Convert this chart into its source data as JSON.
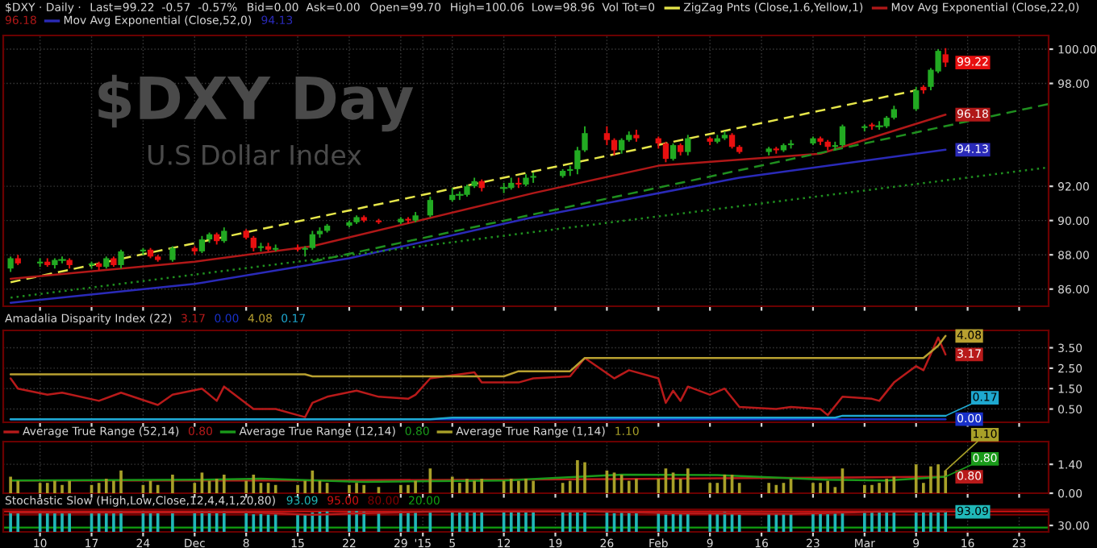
{
  "chart_data": [
    {
      "type": "candlestick",
      "title": "$DXY Day",
      "subtitle": "U.S Dollar Index",
      "x": [
        "2014-11-06",
        "2014-11-07",
        "2014-11-10",
        "2014-11-11",
        "2014-11-12",
        "2014-11-13",
        "2014-11-14",
        "2014-11-17",
        "2014-11-18",
        "2014-11-19",
        "2014-11-20",
        "2014-11-21",
        "2014-11-24",
        "2014-11-25",
        "2014-11-26",
        "2014-11-28",
        "2014-12-01",
        "2014-12-02",
        "2014-12-03",
        "2014-12-04",
        "2014-12-05",
        "2014-12-08",
        "2014-12-09",
        "2014-12-10",
        "2014-12-11",
        "2014-12-12",
        "2014-12-15",
        "2014-12-16",
        "2014-12-17",
        "2014-12-18",
        "2014-12-19",
        "2014-12-22",
        "2014-12-23",
        "2014-12-24",
        "2014-12-26",
        "2014-12-29",
        "2014-12-30",
        "2014-12-31",
        "2015-01-02",
        "2015-01-05",
        "2015-01-06",
        "2015-01-07",
        "2015-01-08",
        "2015-01-09",
        "2015-01-12",
        "2015-01-13",
        "2015-01-14",
        "2015-01-15",
        "2015-01-16",
        "2015-01-20",
        "2015-01-21",
        "2015-01-22",
        "2015-01-23",
        "2015-01-26",
        "2015-01-27",
        "2015-01-28",
        "2015-01-29",
        "2015-01-30",
        "2015-02-02",
        "2015-02-03",
        "2015-02-04",
        "2015-02-05",
        "2015-02-06",
        "2015-02-09",
        "2015-02-10",
        "2015-02-11",
        "2015-02-12",
        "2015-02-13",
        "2015-02-17",
        "2015-02-18",
        "2015-02-19",
        "2015-02-20",
        "2015-02-23",
        "2015-02-24",
        "2015-02-25",
        "2015-02-26",
        "2015-02-27",
        "2015-03-02",
        "2015-03-03",
        "2015-03-04",
        "2015-03-05",
        "2015-03-06",
        "2015-03-09",
        "2015-03-10",
        "2015-03-11",
        "2015-03-12",
        "2015-03-13"
      ],
      "ohlc": [
        [
          87.2,
          87.9,
          87.0,
          87.8
        ],
        [
          87.8,
          88.0,
          87.4,
          87.5
        ],
        [
          87.5,
          87.8,
          87.3,
          87.6
        ],
        [
          87.6,
          87.8,
          87.3,
          87.4
        ],
        [
          87.4,
          87.8,
          87.2,
          87.7
        ],
        [
          87.7,
          87.9,
          87.5,
          87.7
        ],
        [
          87.7,
          87.8,
          87.2,
          87.4
        ],
        [
          87.4,
          87.6,
          87.2,
          87.5
        ],
        [
          87.5,
          87.6,
          87.1,
          87.3
        ],
        [
          87.3,
          87.9,
          87.2,
          87.8
        ],
        [
          87.8,
          87.9,
          87.3,
          87.4
        ],
        [
          87.4,
          88.3,
          87.2,
          88.2
        ],
        [
          88.2,
          88.4,
          88.0,
          88.3
        ],
        [
          88.3,
          88.4,
          87.8,
          87.9
        ],
        [
          87.9,
          88.0,
          87.6,
          87.7
        ],
        [
          87.7,
          88.5,
          87.6,
          88.4
        ],
        [
          88.4,
          88.5,
          88.0,
          88.2
        ],
        [
          88.2,
          89.1,
          88.1,
          88.9
        ],
        [
          88.9,
          89.3,
          88.7,
          89.2
        ],
        [
          89.2,
          89.3,
          88.6,
          88.8
        ],
        [
          88.8,
          89.6,
          88.7,
          89.4
        ],
        [
          89.4,
          89.5,
          88.9,
          89.0
        ],
        [
          89.0,
          89.1,
          88.2,
          88.4
        ],
        [
          88.4,
          88.7,
          88.2,
          88.5
        ],
        [
          88.5,
          88.7,
          88.2,
          88.3
        ],
        [
          88.3,
          88.6,
          88.2,
          88.4
        ],
        [
          88.4,
          88.6,
          88.2,
          88.3
        ],
        [
          88.3,
          88.5,
          87.9,
          88.4
        ],
        [
          88.4,
          89.4,
          88.3,
          89.2
        ],
        [
          89.2,
          89.6,
          89.0,
          89.4
        ],
        [
          89.4,
          89.8,
          89.3,
          89.7
        ],
        [
          89.7,
          90.0,
          89.6,
          89.9
        ],
        [
          89.9,
          90.3,
          89.8,
          90.2
        ],
        [
          90.2,
          90.3,
          89.9,
          90.0
        ],
        [
          90.0,
          90.1,
          89.8,
          89.9
        ],
        [
          89.9,
          90.2,
          89.8,
          90.1
        ],
        [
          90.1,
          90.2,
          89.8,
          90.0
        ],
        [
          90.0,
          90.5,
          89.9,
          90.3
        ],
        [
          90.3,
          91.4,
          90.2,
          91.2
        ],
        [
          91.2,
          91.9,
          91.1,
          91.5
        ],
        [
          91.5,
          91.7,
          91.2,
          91.5
        ],
        [
          91.5,
          92.1,
          91.4,
          92.0
        ],
        [
          92.0,
          92.5,
          91.9,
          92.3
        ],
        [
          92.3,
          92.4,
          91.7,
          91.9
        ],
        [
          91.9,
          92.2,
          91.6,
          91.9
        ],
        [
          91.9,
          92.5,
          91.8,
          92.2
        ],
        [
          92.2,
          92.5,
          91.9,
          92.1
        ],
        [
          92.1,
          92.7,
          92.0,
          92.5
        ],
        [
          92.5,
          92.8,
          92.2,
          92.6
        ],
        [
          92.6,
          93.0,
          92.5,
          92.9
        ],
        [
          92.9,
          93.2,
          92.6,
          93.0
        ],
        [
          93.0,
          94.3,
          92.7,
          94.1
        ],
        [
          94.1,
          95.5,
          94.0,
          95.1
        ],
        [
          95.1,
          95.5,
          94.4,
          94.7
        ],
        [
          94.7,
          94.8,
          93.8,
          94.1
        ],
        [
          94.1,
          94.8,
          93.9,
          94.7
        ],
        [
          94.7,
          95.2,
          94.6,
          95.0
        ],
        [
          95.0,
          95.3,
          94.6,
          94.8
        ],
        [
          94.8,
          94.9,
          94.2,
          94.5
        ],
        [
          94.5,
          94.6,
          93.4,
          93.6
        ],
        [
          93.6,
          94.5,
          93.5,
          94.4
        ],
        [
          94.4,
          94.5,
          93.8,
          94.0
        ],
        [
          94.0,
          95.0,
          93.8,
          94.8
        ],
        [
          94.8,
          94.9,
          94.4,
          94.6
        ],
        [
          94.6,
          95.0,
          94.5,
          94.8
        ],
        [
          94.8,
          95.2,
          94.7,
          95.0
        ],
        [
          95.0,
          95.1,
          94.2,
          94.3
        ],
        [
          94.3,
          94.4,
          93.9,
          94.0
        ],
        [
          94.0,
          94.3,
          93.8,
          94.2
        ],
        [
          94.2,
          94.3,
          93.9,
          94.1
        ],
        [
          94.1,
          94.5,
          94.0,
          94.4
        ],
        [
          94.4,
          94.7,
          94.2,
          94.5
        ],
        [
          94.5,
          94.9,
          94.4,
          94.8
        ],
        [
          94.8,
          94.9,
          94.4,
          94.6
        ],
        [
          94.6,
          94.7,
          94.1,
          94.3
        ],
        [
          94.3,
          94.6,
          94.1,
          94.4
        ],
        [
          94.4,
          95.6,
          94.3,
          95.5
        ],
        [
          95.4,
          95.6,
          95.2,
          95.5
        ],
        [
          95.6,
          95.7,
          95.3,
          95.5
        ],
        [
          95.5,
          95.8,
          95.3,
          95.5
        ],
        [
          95.5,
          96.1,
          95.4,
          96.0
        ],
        [
          96.0,
          96.7,
          95.9,
          96.5
        ],
        [
          96.5,
          97.8,
          96.4,
          97.6
        ],
        [
          97.8,
          97.9,
          97.4,
          97.6
        ],
        [
          97.8,
          98.9,
          97.6,
          98.8
        ],
        [
          98.7,
          100.0,
          98.6,
          99.9
        ],
        [
          99.7,
          100.06,
          98.96,
          99.22
        ]
      ],
      "colors": [
        "#22aa22",
        "#e81010",
        "#22aa22",
        "#e81010",
        "#22aa22",
        "#22aa22",
        "#e81010",
        "#22aa22",
        "#e81010",
        "#22aa22",
        "#e81010",
        "#22aa22",
        "#22aa22",
        "#e81010",
        "#e81010",
        "#22aa22",
        "#e81010",
        "#22aa22",
        "#22aa22",
        "#e81010",
        "#22aa22",
        "#e81010",
        "#e81010",
        "#22aa22",
        "#e81010",
        "#22aa22",
        "#e81010",
        "#22aa22",
        "#22aa22",
        "#22aa22",
        "#22aa22",
        "#22aa22",
        "#22aa22",
        "#e81010",
        "#e81010",
        "#22aa22",
        "#e81010",
        "#22aa22",
        "#22aa22",
        "#22aa22",
        "#22aa22",
        "#22aa22",
        "#22aa22",
        "#e81010",
        "#22aa22",
        "#22aa22",
        "#e81010",
        "#22aa22",
        "#22aa22",
        "#22aa22",
        "#22aa22",
        "#22aa22",
        "#22aa22",
        "#e81010",
        "#e81010",
        "#22aa22",
        "#22aa22",
        "#e81010",
        "#e81010",
        "#e81010",
        "#22aa22",
        "#e81010",
        "#22aa22",
        "#e81010",
        "#22aa22",
        "#22aa22",
        "#e81010",
        "#e81010",
        "#22aa22",
        "#e81010",
        "#22aa22",
        "#22aa22",
        "#22aa22",
        "#e81010",
        "#e81010",
        "#22aa22",
        "#22aa22",
        "#22aa22",
        "#e81010",
        "#22aa22",
        "#22aa22",
        "#22aa22",
        "#22aa22",
        "#e81010",
        "#22aa22",
        "#22aa22",
        "#e81010"
      ],
      "series": [
        {
          "name": "ZigZag Pnts (Close,1.6,Yellow,1)",
          "type": "line",
          "color": "#e6e64a",
          "line_style": "dashed",
          "x": [
            "2014-11-06",
            "2015-03-09"
          ],
          "values": [
            86.4,
            97.6
          ]
        },
        {
          "name": "Mov Avg Exponential (Close,22,0)",
          "type": "line",
          "color": "#b01818",
          "line_style": "solid",
          "x": [
            "2014-11-06",
            "2014-12-01",
            "2014-12-17",
            "2015-01-16",
            "2015-02-02",
            "2015-02-24",
            "2015-03-13"
          ],
          "values": [
            86.6,
            87.6,
            88.5,
            91.6,
            93.2,
            93.9,
            96.18
          ]
        },
        {
          "name": "Mov Avg Exponential (Close,52,0)",
          "type": "line",
          "color": "#2a2ab8",
          "line_style": "solid",
          "x": [
            "2014-11-06",
            "2014-12-01",
            "2014-12-22",
            "2015-01-16",
            "2015-02-13",
            "2015-03-13"
          ],
          "values": [
            85.2,
            86.3,
            87.8,
            90.2,
            92.5,
            94.13
          ]
        },
        {
          "type": "line",
          "color": "#1f8f1f",
          "line_style": "dashed",
          "x": [
            "2014-12-17",
            "2015-03-27"
          ],
          "values": [
            87.6,
            96.8
          ]
        },
        {
          "type": "line",
          "color": "#1f8f1f",
          "line_style": "dotted",
          "x": [
            "2014-11-06",
            "2015-03-27"
          ],
          "values": [
            85.5,
            93.1
          ]
        }
      ],
      "xlim": [
        "2014-11-05",
        "2015-03-27"
      ],
      "ylim": [
        85.0,
        100.8
      ],
      "yticks": [
        {
          "value": 86,
          "label": "86.00"
        },
        {
          "value": 88,
          "label": "88.00"
        },
        {
          "value": 90,
          "label": "90.00"
        },
        {
          "value": 92,
          "label": "92.00"
        },
        {
          "value": 98,
          "label": "98.00"
        },
        {
          "value": 100,
          "label": "100.00"
        }
      ],
      "xticks": [
        {
          "value": "2014-11-10",
          "label": null
        },
        {
          "value": "2014-11-17",
          "label": null
        },
        {
          "value": "2014-11-24",
          "label": null
        },
        {
          "value": "2014-12-01",
          "label": null
        },
        {
          "value": "2014-12-08",
          "label": null
        },
        {
          "value": "2014-12-15",
          "label": null
        },
        {
          "value": "2014-12-22",
          "label": null
        },
        {
          "value": "2014-12-29",
          "label": null
        },
        {
          "value": "2015-01-01",
          "label": null
        },
        {
          "value": "2015-01-05",
          "label": null
        },
        {
          "value": "2015-01-12",
          "label": null
        },
        {
          "value": "2015-01-19",
          "label": null
        },
        {
          "value": "2015-01-26",
          "label": null
        },
        {
          "value": "2015-02-02",
          "label": null
        },
        {
          "value": "2015-02-09",
          "label": null
        },
        {
          "value": "2015-02-16",
          "label": null
        },
        {
          "value": "2015-02-23",
          "label": null
        },
        {
          "value": "2015-03-02",
          "label": null
        },
        {
          "value": "2015-03-09",
          "label": null
        },
        {
          "value": "2015-03-16",
          "label": null
        },
        {
          "value": "2015-03-23",
          "label": null
        }
      ],
      "tick_labels": "y",
      "grid": true,
      "legend": "top left",
      "annotations": [
        "$DXY · Daily ·",
        "Last=99.22  -0.57  -0.57%",
        "Bid=0.00  Ask=0.00",
        "Open=99.70",
        "High=100.06  Low=98.96  Vol Tot=0",
        {
          "text": "99.22",
          "x": "2015-03-13",
          "y": 99.22
        },
        {
          "text": "96.18",
          "x": "2015-03-13",
          "y": 96.18
        },
        {
          "text": "94.13",
          "x": "2015-03-13",
          "y": 94.13
        }
      ]
    },
    {
      "type": "line",
      "title": "Amadalia Disparity Index (22)",
      "series": [
        {
          "type": "line",
          "color": "#b81a1a",
          "line_style": "solid",
          "x": [
            "2014-11-06",
            "2014-11-07",
            "2014-11-11",
            "2014-11-13",
            "2014-11-18",
            "2014-11-21",
            "2014-11-26",
            "2014-11-28",
            "2014-12-02",
            "2014-12-04",
            "2014-12-05",
            "2014-12-09",
            "2014-12-12",
            "2014-12-16",
            "2014-12-17",
            "2014-12-19",
            "2014-12-23",
            "2014-12-26",
            "2014-12-30",
            "2014-12-31",
            "2015-01-02",
            "2015-01-08",
            "2015-01-09",
            "2015-01-14",
            "2015-01-16",
            "2015-01-21",
            "2015-01-23",
            "2015-01-27",
            "2015-01-29",
            "2015-02-02",
            "2015-02-03",
            "2015-02-04",
            "2015-02-05",
            "2015-02-06",
            "2015-02-09",
            "2015-02-11",
            "2015-02-13",
            "2015-02-18",
            "2015-02-20",
            "2015-02-24",
            "2015-02-25",
            "2015-02-27",
            "2015-03-03",
            "2015-03-04",
            "2015-03-06",
            "2015-03-09",
            "2015-03-10",
            "2015-03-12",
            "2015-03-13"
          ],
          "values": [
            2.0,
            1.5,
            1.2,
            1.3,
            0.9,
            1.3,
            0.7,
            1.2,
            1.5,
            0.9,
            1.6,
            0.5,
            0.5,
            0.1,
            0.8,
            1.1,
            1.4,
            1.1,
            1.0,
            1.2,
            2.0,
            2.3,
            1.8,
            1.8,
            2.0,
            2.1,
            3.0,
            2.0,
            2.4,
            2.0,
            0.8,
            1.4,
            0.9,
            1.6,
            1.2,
            1.5,
            0.6,
            0.5,
            0.6,
            0.5,
            0.2,
            1.1,
            1.0,
            0.9,
            1.8,
            2.6,
            2.4,
            4.0,
            3.17
          ]
        },
        {
          "type": "line",
          "color": "#1830c8",
          "line_style": "solid",
          "x": [
            "2014-11-06",
            "2015-03-13"
          ],
          "values": [
            0.0,
            0.0
          ]
        },
        {
          "type": "line",
          "color": "#b8a030",
          "line_style": "solid",
          "x": [
            "2014-11-06",
            "2014-12-16",
            "2014-12-17",
            "2015-01-12",
            "2015-01-14",
            "2015-01-21",
            "2015-01-23",
            "2015-03-10",
            "2015-03-12",
            "2015-03-13"
          ],
          "values": [
            2.2,
            2.2,
            2.1,
            2.1,
            2.35,
            2.35,
            3.0,
            3.0,
            3.6,
            4.08
          ]
        },
        {
          "type": "line",
          "color": "#1ea8d0",
          "line_style": "solid",
          "x": [
            "2014-11-06",
            "2015-01-02",
            "2015-01-05",
            "2015-02-26",
            "2015-02-27",
            "2015-03-13"
          ],
          "values": [
            0.0,
            0.0,
            0.08,
            0.08,
            0.17,
            0.17
          ]
        }
      ],
      "xlim": [
        "2014-11-05",
        "2015-03-27"
      ],
      "ylim": [
        -0.15,
        4.35
      ],
      "yticks": [
        {
          "value": 0.5,
          "label": "0.50"
        },
        {
          "value": 1.5,
          "label": "1.50"
        },
        {
          "value": 2.5,
          "label": "2.50"
        },
        {
          "value": 3.5,
          "label": "3.50"
        }
      ],
      "xticks": [
        {
          "value": "2014-11-10",
          "label": null
        },
        {
          "value": "2014-11-17",
          "label": null
        },
        {
          "value": "2014-11-24",
          "label": null
        },
        {
          "value": "2014-12-01",
          "label": null
        },
        {
          "value": "2014-12-08",
          "label": null
        },
        {
          "value": "2014-12-15",
          "label": null
        },
        {
          "value": "2014-12-22",
          "label": null
        },
        {
          "value": "2014-12-29",
          "label": null
        },
        {
          "value": "2015-01-01",
          "label": null
        },
        {
          "value": "2015-01-05",
          "label": null
        },
        {
          "value": "2015-01-12",
          "label": null
        },
        {
          "value": "2015-01-19",
          "label": null
        },
        {
          "value": "2015-01-26",
          "label": null
        },
        {
          "value": "2015-02-02",
          "label": null
        },
        {
          "value": "2015-02-09",
          "label": null
        },
        {
          "value": "2015-02-16",
          "label": null
        },
        {
          "value": "2015-02-23",
          "label": null
        },
        {
          "value": "2015-03-02",
          "label": null
        },
        {
          "value": "2015-03-09",
          "label": null
        },
        {
          "value": "2015-03-16",
          "label": null
        },
        {
          "value": "2015-03-23",
          "label": null
        }
      ],
      "tick_labels": "y",
      "grid": true,
      "annotations": [
        {
          "text": "3.17",
          "x": "2015-03-13",
          "y": 3.17
        },
        {
          "text": "0.00",
          "x": "2015-03-13",
          "y": 0.0
        },
        {
          "text": "4.08",
          "x": "2015-03-13",
          "y": 4.08
        },
        {
          "text": "0.17",
          "x": "2015-03-13",
          "y": 0.17
        }
      ]
    },
    {
      "type": "bar",
      "x": [
        "2014-11-06",
        "2014-11-07",
        "2014-11-10",
        "2014-11-11",
        "2014-11-12",
        "2014-11-13",
        "2014-11-14",
        "2014-11-17",
        "2014-11-18",
        "2014-11-19",
        "2014-11-20",
        "2014-11-21",
        "2014-11-24",
        "2014-11-25",
        "2014-11-26",
        "2014-11-28",
        "2014-12-01",
        "2014-12-02",
        "2014-12-03",
        "2014-12-04",
        "2014-12-05",
        "2014-12-08",
        "2014-12-09",
        "2014-12-10",
        "2014-12-11",
        "2014-12-12",
        "2014-12-15",
        "2014-12-16",
        "2014-12-17",
        "2014-12-18",
        "2014-12-19",
        "2014-12-22",
        "2014-12-23",
        "2014-12-24",
        "2014-12-26",
        "2014-12-29",
        "2014-12-30",
        "2014-12-31",
        "2015-01-02",
        "2015-01-05",
        "2015-01-06",
        "2015-01-07",
        "2015-01-08",
        "2015-01-09",
        "2015-01-12",
        "2015-01-13",
        "2015-01-14",
        "2015-01-15",
        "2015-01-16",
        "2015-01-20",
        "2015-01-21",
        "2015-01-22",
        "2015-01-23",
        "2015-01-26",
        "2015-01-27",
        "2015-01-28",
        "2015-01-29",
        "2015-01-30",
        "2015-02-02",
        "2015-02-03",
        "2015-02-04",
        "2015-02-05",
        "2015-02-06",
        "2015-02-09",
        "2015-02-10",
        "2015-02-11",
        "2015-02-12",
        "2015-02-13",
        "2015-02-17",
        "2015-02-18",
        "2015-02-19",
        "2015-02-20",
        "2015-02-23",
        "2015-02-24",
        "2015-02-25",
        "2015-02-26",
        "2015-02-27",
        "2015-03-02",
        "2015-03-03",
        "2015-03-04",
        "2015-03-05",
        "2015-03-06",
        "2015-03-09",
        "2015-03-10",
        "2015-03-11",
        "2015-03-12",
        "2015-03-13"
      ],
      "series": [
        {
          "name": "Average True Range (52,14)",
          "type": "line",
          "color": "#b81a1a",
          "line_style": "solid",
          "x": [
            "2014-11-06",
            "2014-12-15",
            "2015-01-15",
            "2015-02-10",
            "2015-03-13"
          ],
          "values": [
            0.62,
            0.62,
            0.66,
            0.72,
            0.8
          ]
        },
        {
          "name": "Average True Range (12,14)",
          "type": "line",
          "color": "#1a9a1a",
          "line_style": "solid",
          "x": [
            "2014-11-06",
            "2014-12-01",
            "2014-12-10",
            "2014-12-24",
            "2015-01-12",
            "2015-01-28",
            "2015-02-10",
            "2015-02-25",
            "2015-03-05",
            "2015-03-13"
          ],
          "values": [
            0.62,
            0.65,
            0.7,
            0.55,
            0.62,
            0.9,
            0.88,
            0.65,
            0.62,
            0.8
          ]
        },
        {
          "name": "Average True Range (1,14)",
          "type": "bar",
          "color": "#a8a028",
          "values": [
            0.8,
            0.6,
            0.5,
            0.5,
            0.6,
            0.4,
            0.6,
            0.4,
            0.5,
            0.7,
            0.6,
            1.1,
            0.4,
            0.6,
            0.4,
            0.9,
            0.5,
            1.0,
            0.6,
            0.7,
            0.9,
            0.6,
            0.9,
            0.5,
            0.5,
            0.4,
            0.4,
            0.6,
            1.1,
            0.6,
            0.5,
            0.4,
            0.5,
            0.4,
            0.3,
            0.4,
            0.4,
            0.6,
            1.2,
            0.8,
            0.5,
            0.7,
            0.6,
            0.7,
            0.6,
            0.7,
            0.6,
            0.7,
            0.6,
            0.5,
            0.6,
            1.6,
            1.5,
            1.1,
            1.0,
            0.9,
            0.6,
            0.7,
            0.7,
            1.2,
            1.0,
            0.7,
            1.2,
            0.5,
            0.5,
            0.9,
            0.9,
            0.5,
            0.5,
            0.4,
            0.5,
            0.7,
            0.5,
            0.5,
            0.6,
            0.3,
            1.2,
            0.4,
            0.4,
            0.5,
            0.7,
            0.8,
            1.4,
            0.5,
            1.3,
            1.4,
            1.1
          ]
        }
      ],
      "xlim": [
        "2014-11-05",
        "2015-03-27"
      ],
      "ylim": [
        0,
        2.5
      ],
      "yticks": [
        {
          "value": 0,
          "label": "0.00"
        },
        {
          "value": 1.4,
          "label": "1.40"
        }
      ],
      "xticks": [
        {
          "value": "2014-11-10",
          "label": null
        },
        {
          "value": "2014-11-17",
          "label": null
        },
        {
          "value": "2014-11-24",
          "label": null
        },
        {
          "value": "2014-12-01",
          "label": null
        },
        {
          "value": "2014-12-08",
          "label": null
        },
        {
          "value": "2014-12-15",
          "label": null
        },
        {
          "value": "2014-12-22",
          "label": null
        },
        {
          "value": "2014-12-29",
          "label": null
        },
        {
          "value": "2015-01-01",
          "label": null
        },
        {
          "value": "2015-01-05",
          "label": null
        },
        {
          "value": "2015-01-12",
          "label": null
        },
        {
          "value": "2015-01-19",
          "label": null
        },
        {
          "value": "2015-01-26",
          "label": null
        },
        {
          "value": "2015-02-02",
          "label": null
        },
        {
          "value": "2015-02-09",
          "label": null
        },
        {
          "value": "2015-02-16",
          "label": null
        },
        {
          "value": "2015-02-23",
          "label": null
        },
        {
          "value": "2015-03-02",
          "label": null
        },
        {
          "value": "2015-03-09",
          "label": null
        },
        {
          "value": "2015-03-16",
          "label": null
        },
        {
          "value": "2015-03-23",
          "label": null
        }
      ],
      "tick_labels": "y",
      "grid": true,
      "legend": "top left",
      "annotations": [
        {
          "text": "0.80",
          "x": "2015-03-13",
          "y": 0.8
        },
        {
          "text": "0.80",
          "x": "2015-03-13",
          "y": 0.8
        },
        {
          "text": "1.10",
          "x": "2015-03-13",
          "y": 1.1
        }
      ]
    },
    {
      "type": "bar",
      "title": "Stochastic Slow (High,Low,Close,12,4,4,1,20,80)",
      "x": [
        "2014-11-06",
        "2014-11-07",
        "2014-11-10",
        "2014-11-11",
        "2014-11-12",
        "2014-11-13",
        "2014-11-14",
        "2014-11-17",
        "2014-11-18",
        "2014-11-19",
        "2014-11-20",
        "2014-11-21",
        "2014-11-24",
        "2014-11-25",
        "2014-11-26",
        "2014-11-28",
        "2014-12-01",
        "2014-12-02",
        "2014-12-03",
        "2014-12-04",
        "2014-12-05",
        "2014-12-08",
        "2014-12-09",
        "2014-12-10",
        "2014-12-11",
        "2014-12-12",
        "2014-12-15",
        "2014-12-16",
        "2014-12-17",
        "2014-12-18",
        "2014-12-19",
        "2014-12-22",
        "2014-12-23",
        "2014-12-24",
        "2014-12-26",
        "2014-12-29",
        "2014-12-30",
        "2014-12-31",
        "2015-01-02",
        "2015-01-05",
        "2015-01-06",
        "2015-01-07",
        "2015-01-08",
        "2015-01-09",
        "2015-01-12",
        "2015-01-13",
        "2015-01-14",
        "2015-01-15",
        "2015-01-16",
        "2015-01-20",
        "2015-01-21",
        "2015-01-22",
        "2015-01-23",
        "2015-01-26",
        "2015-01-27",
        "2015-01-28",
        "2015-01-29",
        "2015-01-30",
        "2015-02-02",
        "2015-02-03",
        "2015-02-04",
        "2015-02-05",
        "2015-02-06",
        "2015-02-09",
        "2015-02-10",
        "2015-02-11",
        "2015-02-12",
        "2015-02-13",
        "2015-02-17",
        "2015-02-18",
        "2015-02-19",
        "2015-02-20",
        "2015-02-23",
        "2015-02-24",
        "2015-02-25",
        "2015-02-26",
        "2015-02-27",
        "2015-03-02",
        "2015-03-03",
        "2015-03-04",
        "2015-03-05",
        "2015-03-06",
        "2015-03-09",
        "2015-03-10",
        "2015-03-11",
        "2015-03-12",
        "2015-03-13"
      ],
      "series": [
        {
          "type": "bar",
          "color": "#20b8b8",
          "values": [
            92,
            90,
            91,
            89,
            92,
            92,
            88,
            90,
            87,
            92,
            90,
            95,
            95,
            91,
            89,
            95,
            93,
            96,
            96,
            92,
            96,
            90,
            82,
            83,
            80,
            81,
            79,
            80,
            90,
            93,
            95,
            96,
            97,
            94,
            92,
            95,
            93,
            96,
            97,
            97,
            96,
            97,
            97,
            92,
            91,
            93,
            91,
            94,
            94,
            95,
            95,
            97,
            97,
            92,
            87,
            91,
            93,
            92,
            89,
            80,
            87,
            82,
            90,
            88,
            90,
            92,
            84,
            80,
            83,
            82,
            85,
            86,
            89,
            86,
            82,
            85,
            93,
            95,
            94,
            94,
            96,
            97,
            97,
            95,
            97,
            98,
            93.09
          ]
        },
        {
          "type": "line",
          "color": "#b81a1a",
          "line_style": "solid",
          "x": [
            "2014-11-06",
            "2014-11-20",
            "2014-12-08",
            "2014-12-17",
            "2014-12-22",
            "2015-01-02",
            "2015-01-23",
            "2015-02-05",
            "2015-02-20",
            "2015-03-04",
            "2015-03-13"
          ],
          "values": [
            90,
            90,
            92,
            80,
            85,
            94,
            96,
            86,
            84,
            94,
            95
          ]
        }
      ],
      "ref_lines": [
        {
          "axis": "y",
          "value": 95,
          "label": "95.00",
          "color": "#d01010"
        },
        {
          "axis": "y",
          "value": 80,
          "label": "80.00",
          "color": "#800000"
        },
        {
          "axis": "y",
          "value": 20,
          "label": "20.00",
          "color": "#10a010"
        }
      ],
      "xlim": [
        "2014-11-05",
        "2015-03-27"
      ],
      "ylim": [
        0,
        105
      ],
      "yticks": [
        {
          "value": 30,
          "label": "30.00"
        }
      ],
      "xticks": [
        {
          "value": "2014-11-10",
          "label": "10"
        },
        {
          "value": "2014-11-17",
          "label": "17"
        },
        {
          "value": "2014-11-24",
          "label": "24"
        },
        {
          "value": "2014-12-01",
          "label": "Dec"
        },
        {
          "value": "2014-12-08",
          "label": "8"
        },
        {
          "value": "2014-12-15",
          "label": "15"
        },
        {
          "value": "2014-12-22",
          "label": "22"
        },
        {
          "value": "2014-12-29",
          "label": "29"
        },
        {
          "value": "2015-01-01",
          "label": "'15"
        },
        {
          "value": "2015-01-05",
          "label": "5"
        },
        {
          "value": "2015-01-12",
          "label": "12"
        },
        {
          "value": "2015-01-19",
          "label": "19"
        },
        {
          "value": "2015-01-26",
          "label": "26"
        },
        {
          "value": "2015-02-02",
          "label": "Feb"
        },
        {
          "value": "2015-02-09",
          "label": "9"
        },
        {
          "value": "2015-02-16",
          "label": "16"
        },
        {
          "value": "2015-02-23",
          "label": "23"
        },
        {
          "value": "2015-03-02",
          "label": "Mar"
        },
        {
          "value": "2015-03-09",
          "label": "9"
        },
        {
          "value": "2015-03-16",
          "label": "16"
        },
        {
          "value": "2015-03-23",
          "label": "23"
        }
      ],
      "grid": "x",
      "annotations": [
        {
          "text": "93.09",
          "x": "2015-03-13",
          "y": 93.09
        }
      ]
    }
  ]
}
